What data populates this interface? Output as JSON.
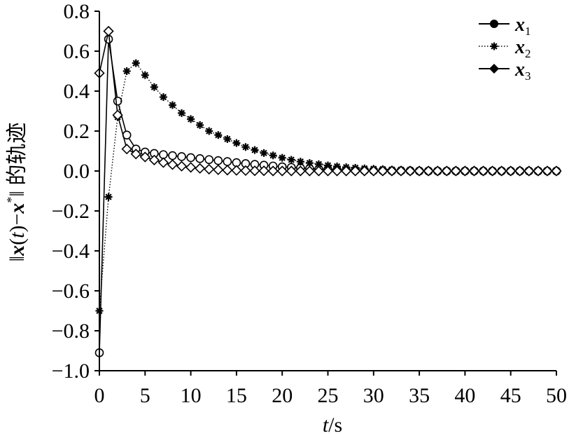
{
  "chart_data": {
    "type": "line",
    "xlabel": "t/s",
    "ylabel": "‖x(t)−x*‖ 的轨迹",
    "xlim": [
      0,
      50
    ],
    "ylim": [
      -1.0,
      0.8
    ],
    "xticks": [
      0,
      5,
      10,
      15,
      20,
      25,
      30,
      35,
      40,
      45,
      50
    ],
    "yticks": [
      -1.0,
      -0.8,
      -0.6,
      -0.4,
      -0.2,
      0.0,
      0.2,
      0.4,
      0.6,
      0.8
    ],
    "ytick_labels": [
      "−1.0",
      "−0.8",
      "−0.6",
      "−0.4",
      "−0.2",
      "0.0",
      "0.2",
      "0.4",
      "0.6",
      "0.8"
    ],
    "xtick_labels": [
      "0",
      "5",
      "10",
      "15",
      "20",
      "25",
      "30",
      "35",
      "40",
      "45",
      "50"
    ],
    "grid": false,
    "legend_position": "top-right",
    "series": [
      {
        "name": "x1",
        "legend_base": "x",
        "legend_sub": "1",
        "marker": "circle",
        "line": "solid",
        "x": [
          0,
          1,
          2,
          3,
          4,
          5,
          6,
          7,
          8,
          9,
          10,
          11,
          12,
          13,
          14,
          15,
          16,
          17,
          18,
          19,
          20,
          21,
          22,
          23,
          24,
          25,
          26,
          27,
          28,
          29,
          30,
          31,
          32,
          33,
          34,
          35,
          36,
          37,
          38,
          39,
          40,
          41,
          42,
          43,
          44,
          45,
          46,
          47,
          48,
          49,
          50
        ],
        "y": [
          -0.91,
          0.66,
          0.35,
          0.18,
          0.11,
          0.095,
          0.088,
          0.082,
          0.077,
          0.072,
          0.067,
          0.062,
          0.057,
          0.052,
          0.047,
          0.042,
          0.037,
          0.033,
          0.029,
          0.025,
          0.021,
          0.018,
          0.015,
          0.012,
          0.01,
          0.008,
          0.006,
          0.005,
          0.004,
          0.003,
          0.002,
          0.002,
          0.001,
          0.001,
          0.001,
          0.0,
          0.0,
          0.0,
          0.0,
          0.0,
          0.0,
          0.0,
          0.0,
          0.0,
          0.0,
          0.0,
          0.0,
          0.0,
          0.0,
          0.0,
          0.0
        ]
      },
      {
        "name": "x2",
        "legend_base": "x",
        "legend_sub": "2",
        "marker": "asterisk",
        "line": "dotted",
        "x": [
          0,
          1,
          2,
          3,
          4,
          5,
          6,
          7,
          8,
          9,
          10,
          11,
          12,
          13,
          14,
          15,
          16,
          17,
          18,
          19,
          20,
          21,
          22,
          23,
          24,
          25,
          26,
          27,
          28,
          29,
          30,
          31,
          32,
          33,
          34,
          35,
          36,
          37,
          38,
          39,
          40,
          41,
          42,
          43,
          44,
          45,
          46,
          47,
          48,
          49,
          50
        ],
        "y": [
          -0.7,
          -0.13,
          0.27,
          0.5,
          0.54,
          0.48,
          0.42,
          0.37,
          0.33,
          0.29,
          0.26,
          0.23,
          0.2,
          0.18,
          0.16,
          0.14,
          0.12,
          0.105,
          0.09,
          0.078,
          0.066,
          0.056,
          0.047,
          0.04,
          0.034,
          0.028,
          0.023,
          0.019,
          0.016,
          0.013,
          0.011,
          0.009,
          0.007,
          0.006,
          0.005,
          0.004,
          0.003,
          0.002,
          0.002,
          0.001,
          0.001,
          0.001,
          0.0,
          0.0,
          0.0,
          0.0,
          0.0,
          0.0,
          0.0,
          0.0,
          0.0
        ]
      },
      {
        "name": "x3",
        "legend_base": "x",
        "legend_sub": "3",
        "marker": "diamond",
        "line": "solid",
        "x": [
          0,
          1,
          2,
          3,
          4,
          5,
          6,
          7,
          8,
          9,
          10,
          11,
          12,
          13,
          14,
          15,
          16,
          17,
          18,
          19,
          20,
          21,
          22,
          23,
          24,
          25,
          26,
          27,
          28,
          29,
          30,
          31,
          32,
          33,
          34,
          35,
          36,
          37,
          38,
          39,
          40,
          41,
          42,
          43,
          44,
          45,
          46,
          47,
          48,
          49,
          50
        ],
        "y": [
          0.49,
          0.7,
          0.28,
          0.11,
          0.085,
          0.07,
          0.055,
          0.042,
          0.032,
          0.024,
          0.018,
          0.013,
          0.009,
          0.006,
          0.004,
          0.003,
          0.002,
          0.001,
          0.001,
          0.0,
          0.0,
          0.0,
          0.0,
          0.0,
          0.0,
          0.0,
          0.0,
          0.0,
          0.0,
          0.0,
          0.0,
          0.0,
          0.0,
          0.0,
          0.0,
          0.0,
          0.0,
          0.0,
          0.0,
          0.0,
          0.0,
          0.0,
          0.0,
          0.0,
          0.0,
          0.0,
          0.0,
          0.0,
          0.0,
          0.0,
          0.0
        ]
      }
    ]
  },
  "axis_titles": {
    "x_italic": "t",
    "x_rest": "/s",
    "y_prefix": "‖",
    "y_x": "x",
    "y_paren_open": "(",
    "y_t": "t",
    "y_paren_close": ")−",
    "y_x2": "x",
    "y_star": "*",
    "y_suffix": "‖ 的轨迹"
  }
}
